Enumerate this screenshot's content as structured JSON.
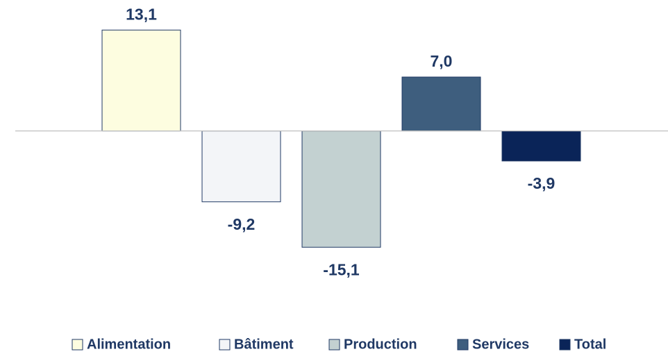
{
  "chart_data": {
    "type": "bar",
    "ylim": [
      -20,
      17
    ],
    "series": [
      {
        "name": "Alimentation",
        "color": "#fdfde0",
        "values": [
          13.1
        ],
        "value_labels": [
          "13,1"
        ]
      },
      {
        "name": "Bâtiment",
        "color": "#f3f5f8",
        "values": [
          -9.2
        ],
        "value_labels": [
          "-9,2"
        ]
      },
      {
        "name": "Production",
        "color": "#c3d1d1",
        "values": [
          -15.1
        ],
        "value_labels": [
          "-15,1"
        ]
      },
      {
        "name": "Services",
        "color": "#3e5e7e",
        "values": [
          7.0
        ],
        "value_labels": [
          "7,0"
        ]
      },
      {
        "name": "Total",
        "color": "#0a2458",
        "values": [
          -3.9
        ],
        "value_labels": [
          "-3,9"
        ]
      }
    ]
  }
}
